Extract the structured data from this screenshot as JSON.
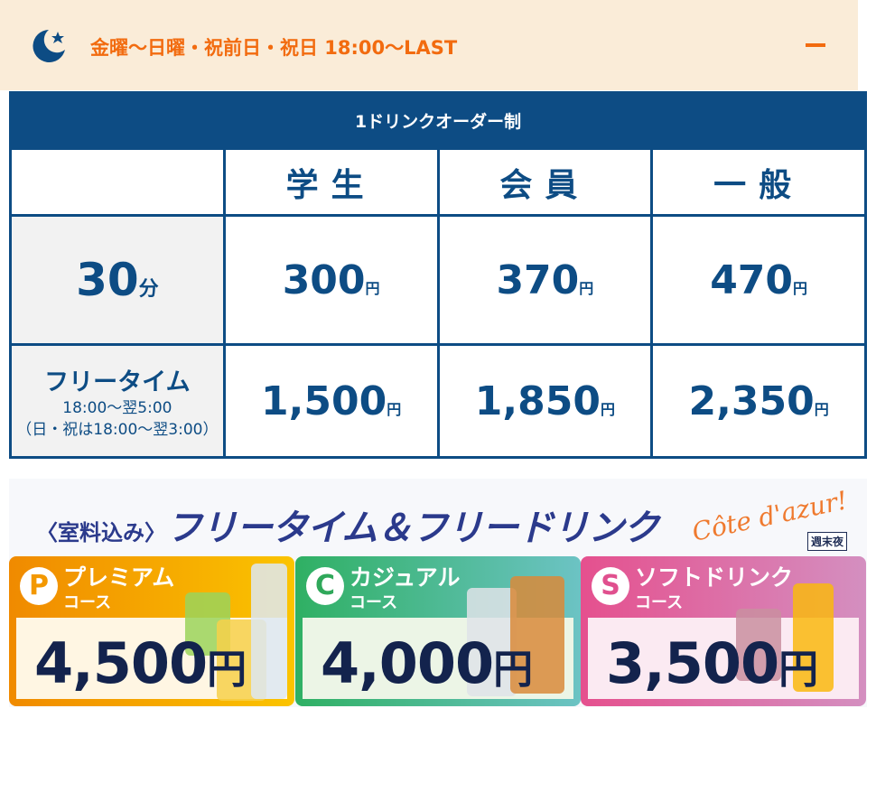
{
  "header": {
    "icon": "moon-star-icon",
    "title": "金曜〜日曜・祝前日・祝日 18:00〜LAST",
    "toggle_icon": "minus-icon",
    "accent": "#f26b0f"
  },
  "table": {
    "caption": "1ドリンクオーダー制",
    "columns": [
      "学生",
      "会員",
      "一般"
    ],
    "rows": [
      {
        "label": "30",
        "label_unit": "分",
        "prices": [
          "300",
          "370",
          "470"
        ],
        "unit": "円"
      },
      {
        "label": "フリータイム",
        "sub1": "18:00〜翌5:00",
        "sub2": "（日・祝は18:00〜翌3:00）",
        "prices": [
          "1,500",
          "1,850",
          "2,350"
        ],
        "unit": "円"
      }
    ],
    "color": "#0d4c84"
  },
  "banner": {
    "prefix": "〈室料込み〉",
    "title": "フリータイム＆フリードリンク",
    "logo": "Côte d'azur!",
    "tag": "週末夜",
    "courses": [
      {
        "badge": "P",
        "name": "プレミアム",
        "sub": "コース",
        "price": "4,500",
        "unit": "円",
        "color": "#f39800"
      },
      {
        "badge": "C",
        "name": "カジュアル",
        "sub": "コース",
        "price": "4,000",
        "unit": "円",
        "color": "#3bb273"
      },
      {
        "badge": "S",
        "name": "ソフトドリンク",
        "sub": "コース",
        "price": "3,500",
        "unit": "円",
        "color": "#e0609a"
      }
    ]
  }
}
